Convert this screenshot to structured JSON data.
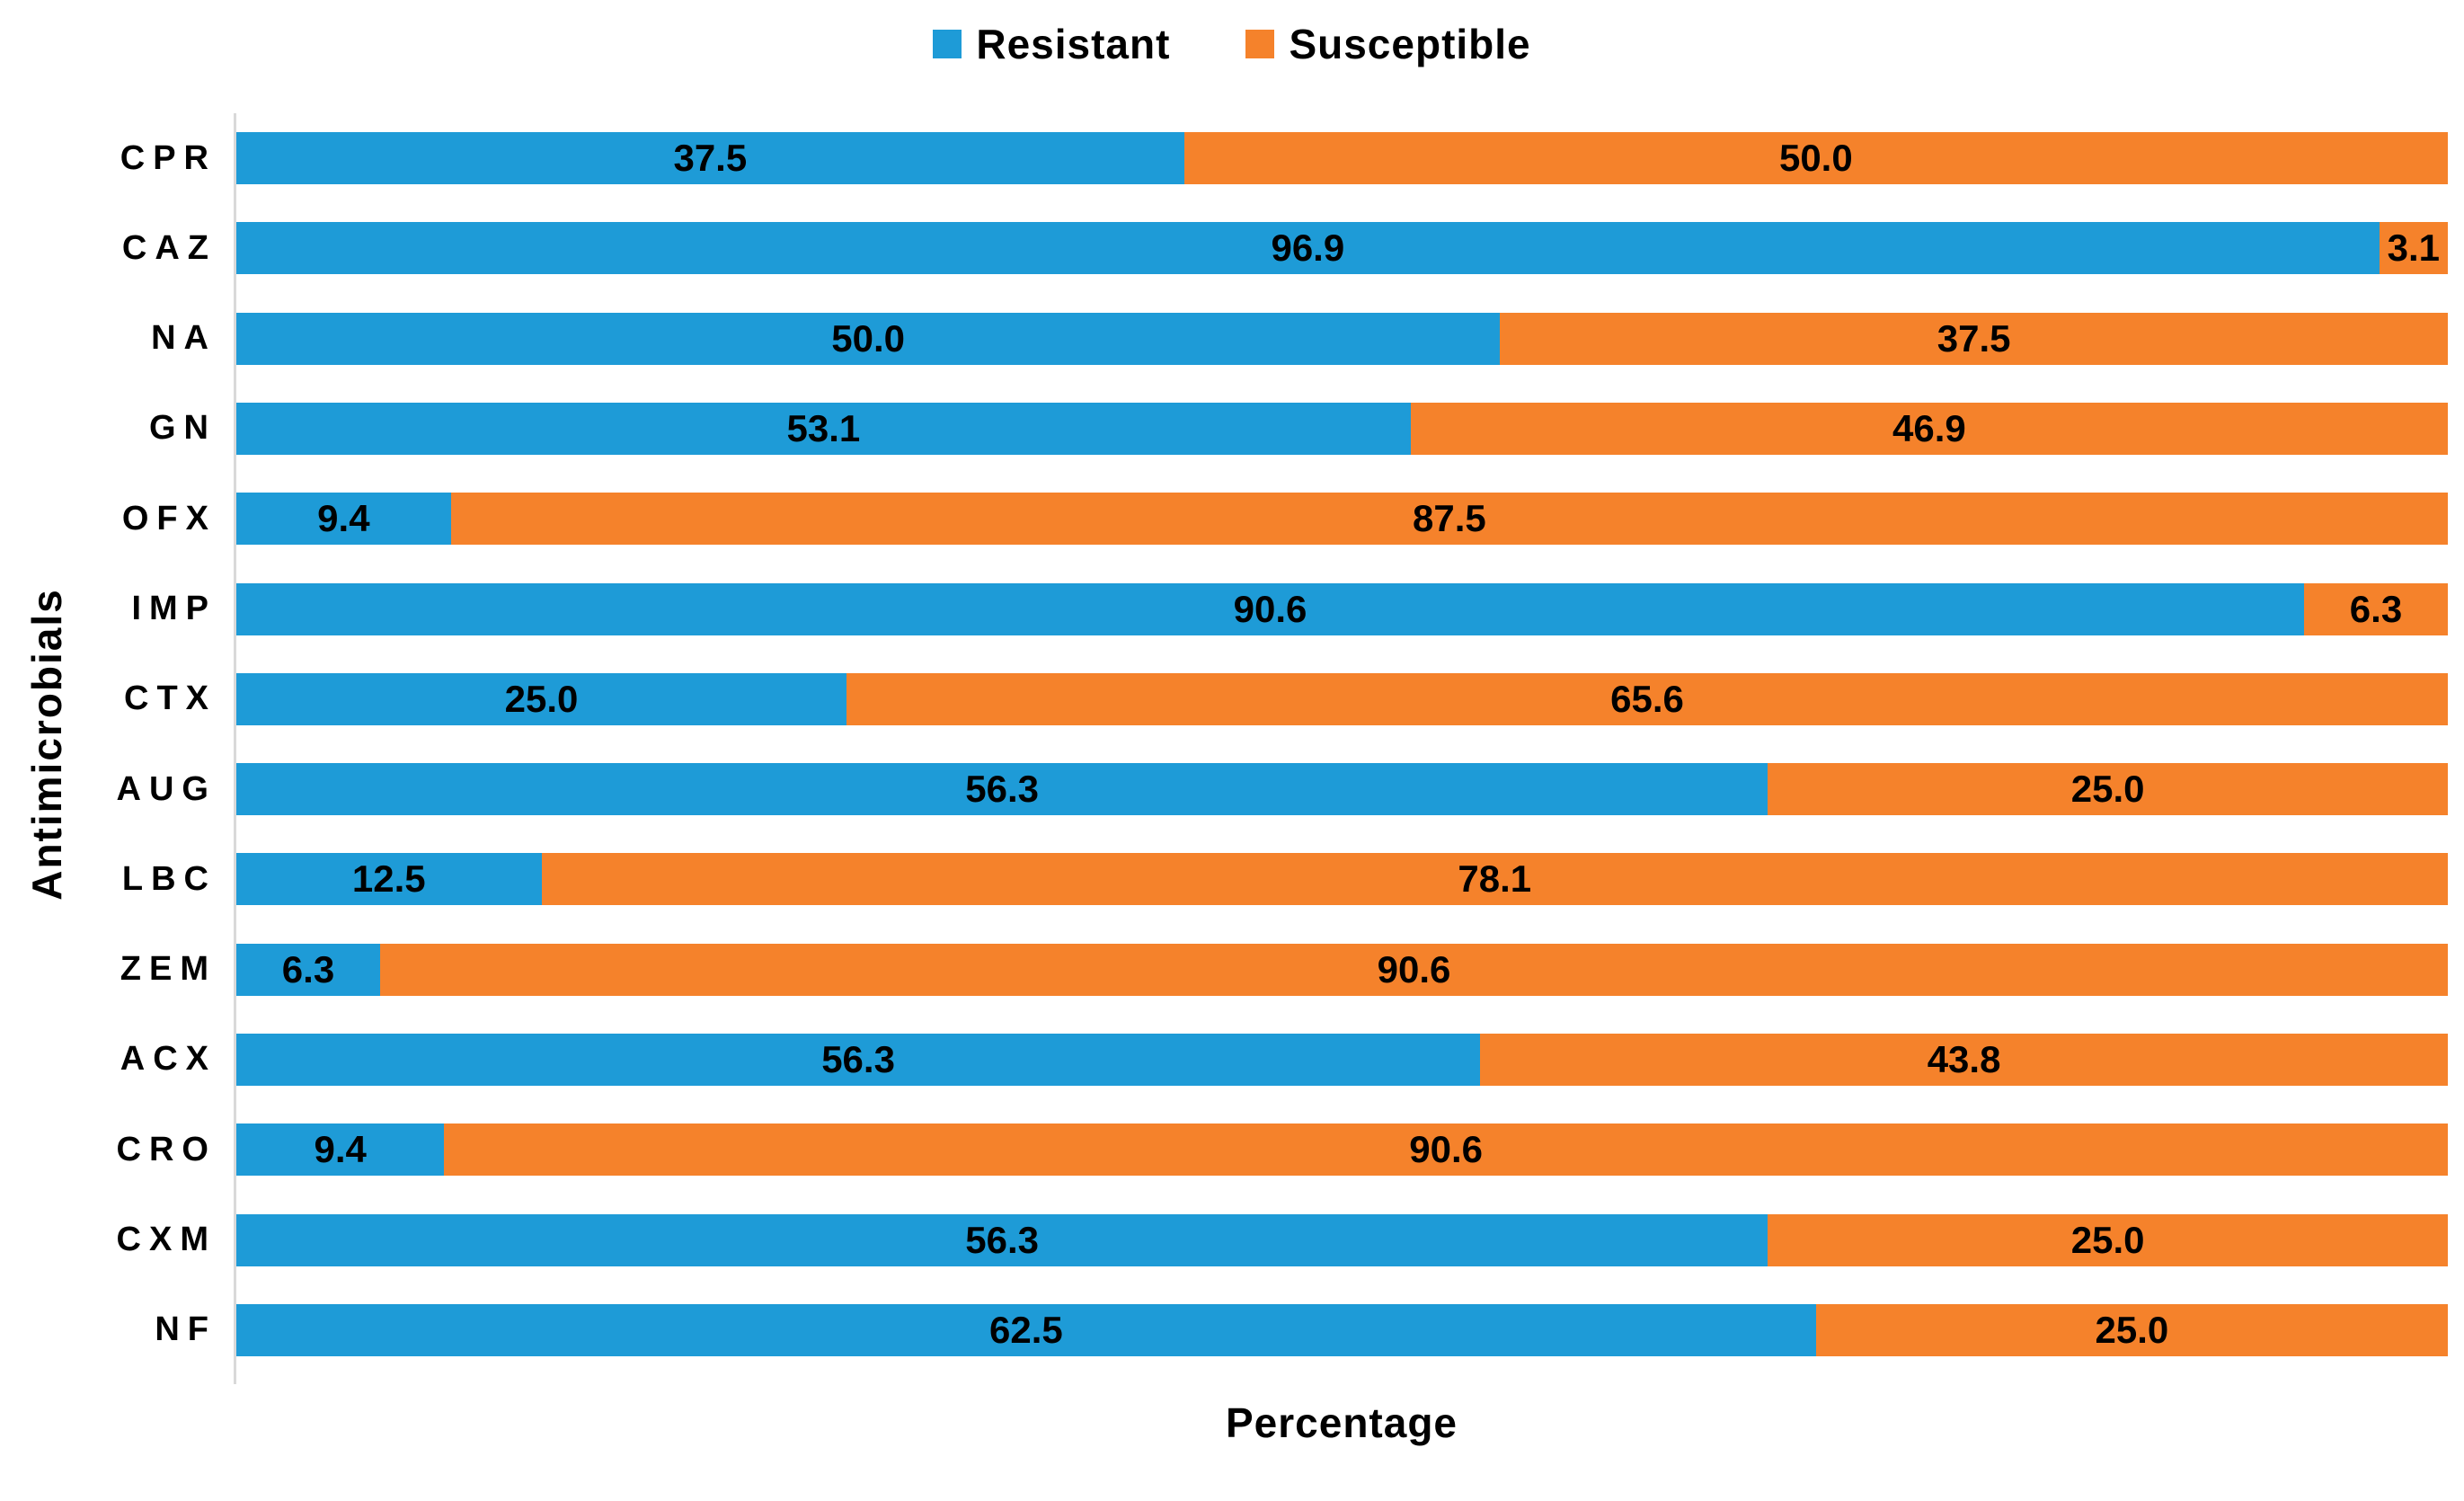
{
  "chart_data": {
    "type": "bar",
    "orientation": "horizontal",
    "stacking": "percent",
    "note_layout": "each bar is normalized to the sum of its two series values (100% stacked); data labels show the raw percentage values, centered in each segment",
    "xlabel": "Percentage",
    "ylabel": "Antimicrobials",
    "legend": {
      "position": "top-center",
      "entries": [
        "Resistant",
        "Susceptible"
      ]
    },
    "categories": [
      "CPR",
      "CAZ",
      "NA",
      "GN",
      "OFX",
      "IMP",
      "CTX",
      "AUG",
      "LBC",
      "ZEM",
      "ACX",
      "CRO",
      "CXM",
      "NF"
    ],
    "series": [
      {
        "name": "Resistant",
        "color": "#1E9BD7",
        "values": [
          37.5,
          96.9,
          50.0,
          53.1,
          9.4,
          90.6,
          25.0,
          56.3,
          12.5,
          6.3,
          56.3,
          9.4,
          56.3,
          62.5
        ]
      },
      {
        "name": "Susceptible",
        "color": "#F5822B",
        "values": [
          50.0,
          3.1,
          37.5,
          46.9,
          87.5,
          6.3,
          65.6,
          25.0,
          78.1,
          90.6,
          43.8,
          90.6,
          25.0,
          25.0
        ]
      }
    ],
    "value_label_decimals": 1,
    "axis_line_color": "#D9D9D9",
    "text_color": "#000000",
    "background_color": "#FFFFFF",
    "grid": "off"
  }
}
